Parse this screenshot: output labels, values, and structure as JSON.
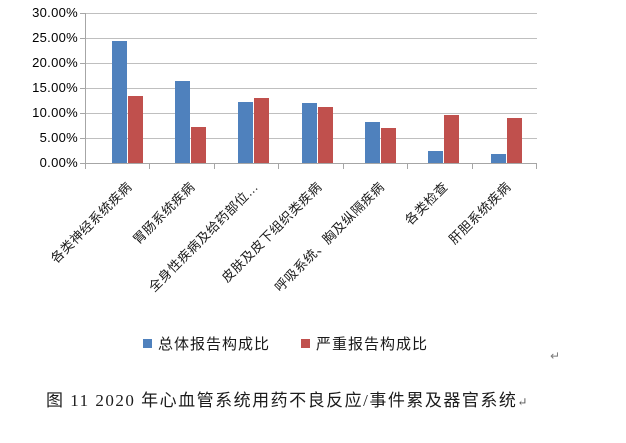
{
  "figure": {
    "caption": "图 11  2020 年心血管系统用药不良反应/事件累及器官系统",
    "caption_return_mark": "↵",
    "stray_return_mark": "↵"
  },
  "chart_data": {
    "type": "bar",
    "title": "",
    "categories": [
      "各类神经系统疾病",
      "胃肠系统疾病",
      "全身性疾病及给药部位…",
      "皮肤及皮下组织类疾病",
      "呼吸系统、胸及纵隔疾病",
      "各类检查",
      "肝胆系统疾病"
    ],
    "series": [
      {
        "name": "总体报告构成比",
        "color": "#4F81BD",
        "values": [
          24.4,
          16.3,
          12.1,
          11.9,
          8.1,
          2.3,
          1.7
        ]
      },
      {
        "name": "严重报告构成比",
        "color": "#C0504D",
        "values": [
          13.4,
          7.1,
          13.0,
          11.2,
          7.0,
          9.6,
          8.9
        ]
      }
    ],
    "xlabel": "",
    "ylabel": "",
    "ylim": [
      0,
      30
    ],
    "ytick_step": 5,
    "ytick_labels": [
      "0.00%",
      "5.00%",
      "10.00%",
      "15.00%",
      "20.00%",
      "25.00%",
      "30.00%"
    ],
    "grid": true,
    "legend_position": "bottom"
  },
  "colors": {
    "bar_blue": "#4F81BD",
    "bar_red": "#C0504D",
    "gridline": "#BFBFBF",
    "axis": "#A6A6A6",
    "text": "#000000",
    "return_mark": "#7A7A7A"
  }
}
